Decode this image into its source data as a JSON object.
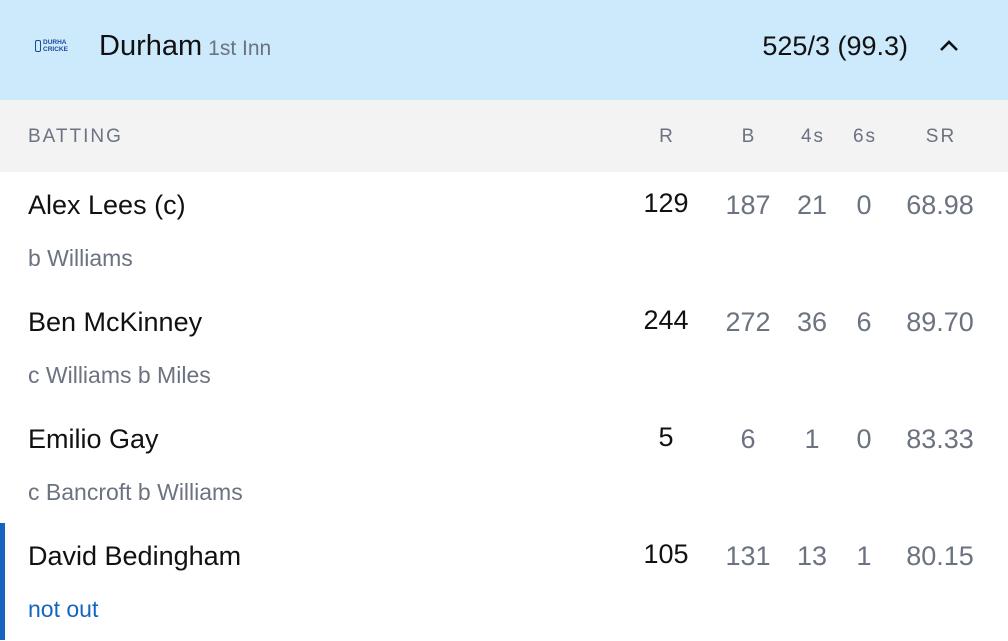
{
  "header": {
    "logo_text": "DURHAM CRICKET",
    "team": "Durham",
    "innings": "1st Inn",
    "score": "525/3 (99.3)",
    "collapse_icon": "chevron-up-icon"
  },
  "columns": {
    "batting": "BATTING",
    "r": "R",
    "b": "B",
    "fours": "4s",
    "sixes": "6s",
    "sr": "SR"
  },
  "batters": [
    {
      "name": "Alex Lees (c)",
      "dismissal": "b Williams",
      "r": "129",
      "b": "187",
      "fours": "21",
      "sixes": "0",
      "sr": "68.98"
    },
    {
      "name": "Ben McKinney",
      "dismissal": "c Williams b Miles",
      "r": "244",
      "b": "272",
      "fours": "36",
      "sixes": "6",
      "sr": "89.70"
    },
    {
      "name": "Emilio Gay",
      "dismissal": "c Bancroft b Williams",
      "r": "5",
      "b": "6",
      "fours": "1",
      "sixes": "0",
      "sr": "83.33"
    },
    {
      "name": "David Bedingham",
      "dismissal": "not out",
      "r": "105",
      "b": "131",
      "fours": "13",
      "sixes": "1",
      "sr": "80.15",
      "at_crease": true
    }
  ],
  "colors": {
    "header_bg": "#cde9fc",
    "accent": "#1565c0"
  }
}
